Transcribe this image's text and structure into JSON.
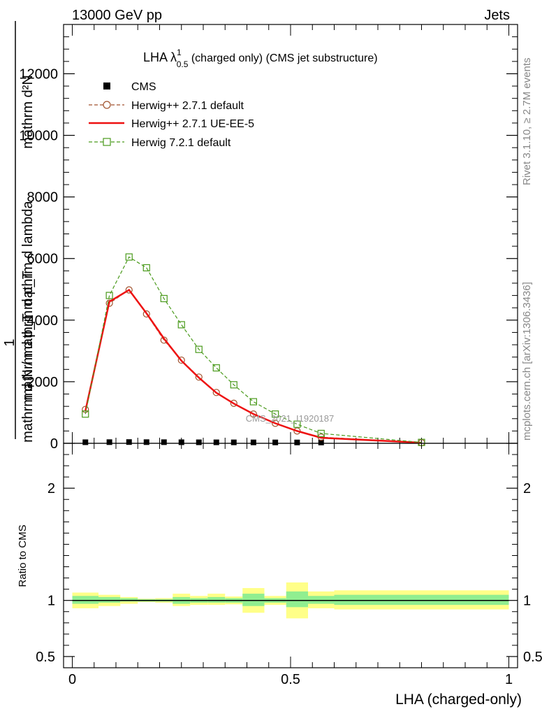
{
  "header": {
    "left": "13000 GeV pp",
    "right": "Jets"
  },
  "side_text": {
    "rivet": "Rivet 3.1.10, ≥ 2.7M events",
    "mcplots": "mcplots.cern.ch [arXiv:1306.3436]"
  },
  "analysis_label": "CMS_2021_I1920187",
  "colors": {
    "herwig_default": "#a0522d",
    "herwig_ueee5": "#ee1111",
    "herwig721": "#4a9a1c",
    "band_inner": "#90ee90",
    "band_outer": "#ffff88"
  },
  "chart_data": [
    {
      "type": "line",
      "title": {
        "prefix": "LHA λ",
        "sup": "1",
        "sub": "0.5",
        "suffix": " (charged only) (CMS jet substructure)"
      },
      "ylabel": {
        "numerator": "mathrm d²N",
        "denominator": "mathrm d p_T mathrm d lambda",
        "prefactor": "1",
        "prefactor_den": "mathrm d N / mathrm d p_T"
      },
      "ylim": [
        0,
        13600
      ],
      "yticks": [
        "0",
        "2000",
        "4000",
        "6000",
        "8000",
        "10000",
        "12000"
      ],
      "ytick_values": [
        0,
        2000,
        4000,
        6000,
        8000,
        10000,
        12000
      ],
      "xlim": [
        -0.02,
        1.02
      ],
      "legend_position": "top-left",
      "series": [
        {
          "name": "CMS",
          "style": "marker-square",
          "x": [
            0.03,
            0.085,
            0.13,
            0.17,
            0.21,
            0.25,
            0.29,
            0.33,
            0.37,
            0.415,
            0.465,
            0.515,
            0.57
          ],
          "values": [
            12,
            15,
            18,
            15,
            14,
            12,
            10,
            9,
            8,
            7,
            6,
            5,
            4
          ]
        },
        {
          "name": "Herwig++ 2.7.1 default",
          "style": "dashed-circle",
          "x": [
            0.03,
            0.085,
            0.13,
            0.17,
            0.21,
            0.25,
            0.29,
            0.33,
            0.37,
            0.415,
            0.465,
            0.515,
            0.57,
            0.8
          ],
          "values": [
            1100,
            4550,
            4980,
            4200,
            3350,
            2700,
            2150,
            1650,
            1300,
            950,
            650,
            400,
            200,
            20
          ]
        },
        {
          "name": "Herwig++ 2.7.1 UE-EE-5",
          "style": "solid",
          "x": [
            0.03,
            0.085,
            0.13,
            0.17,
            0.21,
            0.25,
            0.29,
            0.33,
            0.37,
            0.415,
            0.465,
            0.515,
            0.57,
            0.8
          ],
          "values": [
            1050,
            4600,
            4980,
            4220,
            3400,
            2680,
            2130,
            1640,
            1290,
            950,
            650,
            400,
            180,
            20
          ]
        },
        {
          "name": "Herwig 7.2.1 default",
          "style": "dashed-square",
          "x": [
            0.03,
            0.085,
            0.13,
            0.17,
            0.21,
            0.25,
            0.29,
            0.33,
            0.37,
            0.415,
            0.465,
            0.515,
            0.57,
            0.8
          ],
          "values": [
            950,
            4800,
            6050,
            5700,
            4700,
            3850,
            3050,
            2450,
            1900,
            1350,
            950,
            620,
            320,
            30
          ]
        }
      ]
    },
    {
      "type": "area",
      "ylabel": "Ratio to CMS",
      "ylim": [
        0.4,
        2.4
      ],
      "yticks": [
        "0.5",
        "1",
        "2"
      ],
      "ytick_values": [
        0.5,
        1,
        2
      ],
      "xlabel": "LHA (charged-only)",
      "xticks": [
        "0",
        "0.5",
        "1"
      ],
      "xtick_values": [
        0,
        0.5,
        1
      ],
      "bands": [
        {
          "x0": 0.0,
          "x1": 0.06,
          "inner": [
            0.97,
            1.04
          ],
          "outer": [
            0.93,
            1.07
          ]
        },
        {
          "x0": 0.06,
          "x1": 0.11,
          "inner": [
            0.98,
            1.03
          ],
          "outer": [
            0.95,
            1.05
          ]
        },
        {
          "x0": 0.11,
          "x1": 0.15,
          "inner": [
            0.99,
            1.02
          ],
          "outer": [
            0.97,
            1.03
          ]
        },
        {
          "x0": 0.15,
          "x1": 0.19,
          "inner": [
            0.99,
            1.01
          ],
          "outer": [
            0.985,
            1.015
          ]
        },
        {
          "x0": 0.19,
          "x1": 0.23,
          "inner": [
            0.99,
            1.01
          ],
          "outer": [
            0.98,
            1.02
          ]
        },
        {
          "x0": 0.23,
          "x1": 0.27,
          "inner": [
            0.97,
            1.03
          ],
          "outer": [
            0.95,
            1.06
          ]
        },
        {
          "x0": 0.27,
          "x1": 0.31,
          "inner": [
            0.98,
            1.02
          ],
          "outer": [
            0.96,
            1.04
          ]
        },
        {
          "x0": 0.31,
          "x1": 0.35,
          "inner": [
            0.98,
            1.03
          ],
          "outer": [
            0.96,
            1.06
          ]
        },
        {
          "x0": 0.35,
          "x1": 0.39,
          "inner": [
            0.98,
            1.02
          ],
          "outer": [
            0.965,
            1.035
          ]
        },
        {
          "x0": 0.39,
          "x1": 0.44,
          "inner": [
            0.95,
            1.06
          ],
          "outer": [
            0.89,
            1.11
          ]
        },
        {
          "x0": 0.44,
          "x1": 0.49,
          "inner": [
            0.98,
            1.02
          ],
          "outer": [
            0.96,
            1.04
          ]
        },
        {
          "x0": 0.49,
          "x1": 0.54,
          "inner": [
            0.94,
            1.08
          ],
          "outer": [
            0.84,
            1.16
          ]
        },
        {
          "x0": 0.54,
          "x1": 0.6,
          "inner": [
            0.97,
            1.04
          ],
          "outer": [
            0.93,
            1.08
          ]
        },
        {
          "x0": 0.6,
          "x1": 1.0,
          "inner": [
            0.96,
            1.05
          ],
          "outer": [
            0.92,
            1.09
          ]
        }
      ]
    }
  ]
}
